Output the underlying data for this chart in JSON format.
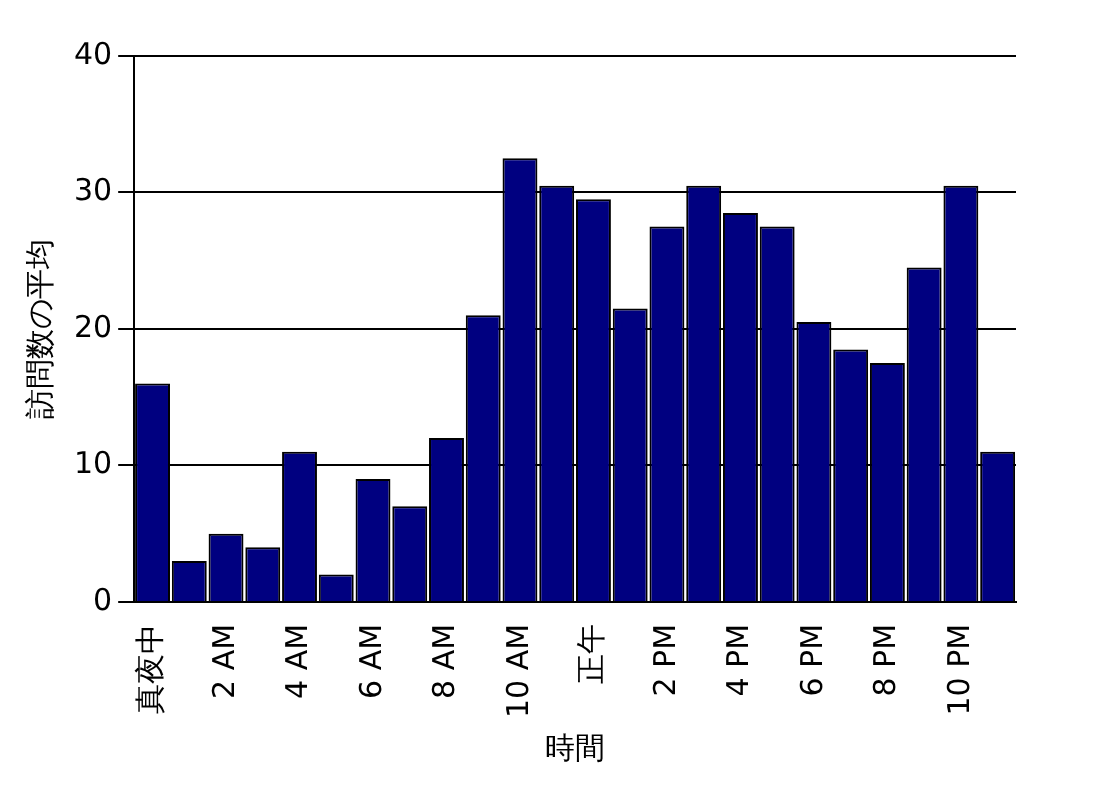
{
  "chart_data": {
    "type": "bar",
    "xlabel": "時間",
    "ylabel": "訪問数の平均",
    "categories": [
      "真夜中",
      null,
      "2 AM",
      null,
      "4 AM",
      null,
      "6 AM",
      null,
      "8 AM",
      null,
      "10 AM",
      null,
      "正午",
      null,
      "2 PM",
      null,
      "4 PM",
      null,
      "6 PM",
      null,
      "8 PM",
      null,
      "10 PM",
      null
    ],
    "values": [
      16,
      3,
      5,
      4,
      11,
      2,
      9,
      7,
      12,
      21,
      32.5,
      30.5,
      29.5,
      21.5,
      27.5,
      30.5,
      28.5,
      27.5,
      20.5,
      18.5,
      17.5,
      24.5,
      30.5,
      11
    ],
    "color": "#000080",
    "ylim": [
      0,
      40
    ],
    "yticks": [
      0,
      10,
      20,
      30,
      40
    ],
    "grid": "y",
    "legend": false
  }
}
